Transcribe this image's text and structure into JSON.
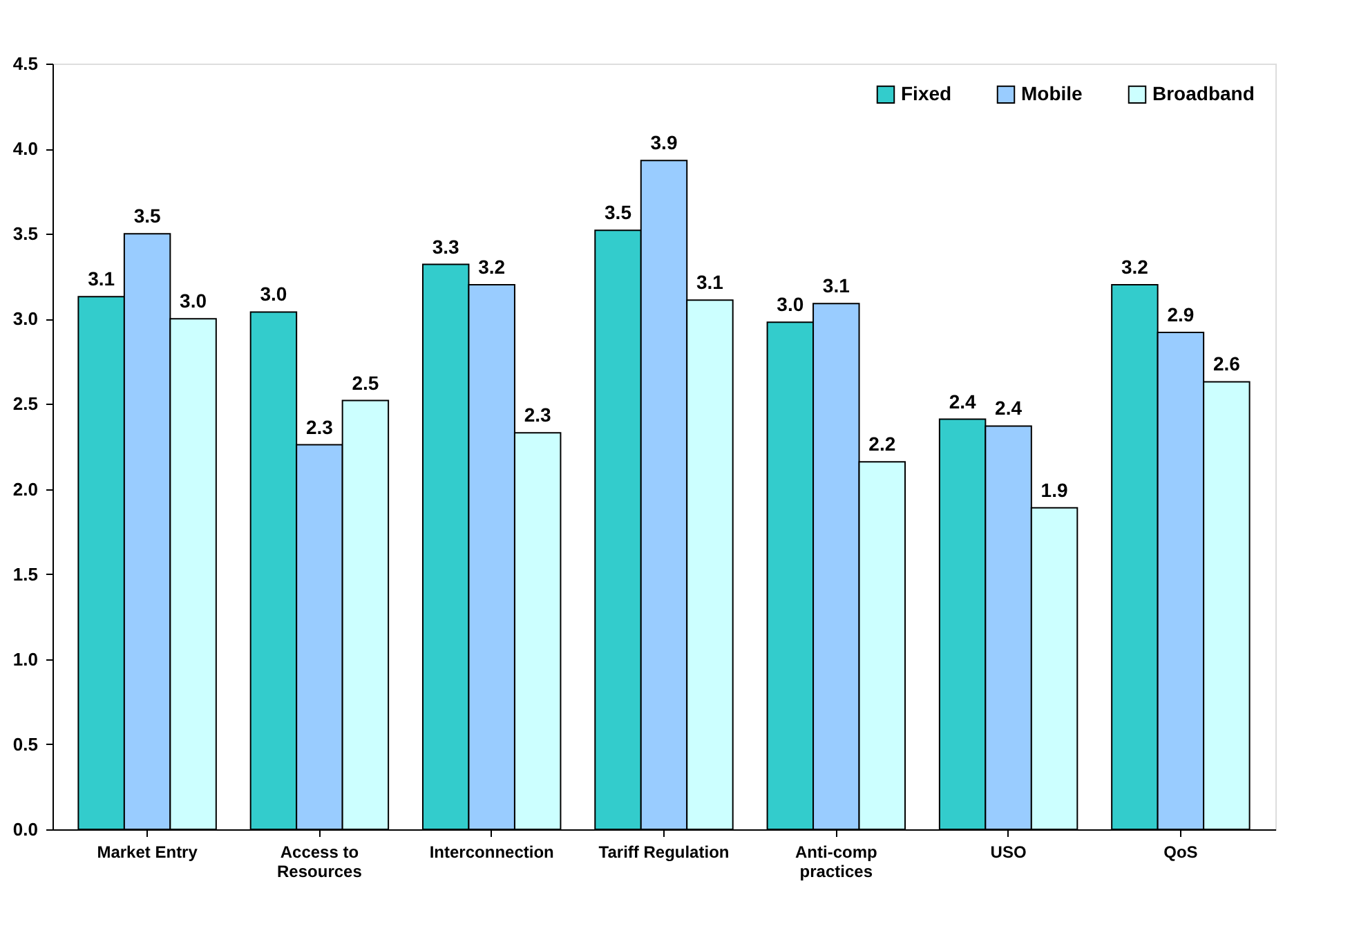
{
  "chart_data": {
    "type": "bar",
    "categories": [
      "Market Entry",
      "Access to Resources",
      "Interconnection",
      "Tariff Regulation",
      "Anti-comp practices",
      "USO",
      "QoS"
    ],
    "series": [
      {
        "name": "Fixed",
        "color": "#33cccc",
        "values": [
          3.13,
          3.04,
          3.32,
          3.52,
          2.98,
          2.41,
          3.2
        ],
        "value_labels": [
          "3.1",
          "3.0",
          "3.3",
          "3.5",
          "3.0",
          "2.4",
          "3.2"
        ]
      },
      {
        "name": "Mobile",
        "color": "#99ccff",
        "values": [
          3.5,
          2.26,
          3.2,
          3.93,
          3.09,
          2.37,
          2.92
        ],
        "value_labels": [
          "3.5",
          "2.3",
          "3.2",
          "3.9",
          "3.1",
          "2.4",
          "2.9"
        ]
      },
      {
        "name": "Broadband",
        "color": "#ccffff",
        "values": [
          3.0,
          2.52,
          2.33,
          3.11,
          2.16,
          1.89,
          2.63
        ],
        "value_labels": [
          "3.0",
          "2.5",
          "2.3",
          "3.1",
          "2.2",
          "1.9",
          "2.6"
        ]
      }
    ],
    "ylim": [
      0,
      4.5
    ],
    "yticks": [
      {
        "value": 0,
        "label": "0.0"
      },
      {
        "value": 0.5,
        "label": "0.5"
      },
      {
        "value": 1,
        "label": "1.0"
      },
      {
        "value": 1.5,
        "label": "1.5"
      },
      {
        "value": 2,
        "label": "2.0"
      },
      {
        "value": 2.5,
        "label": "2.5"
      },
      {
        "value": 3,
        "label": "3.0"
      },
      {
        "value": 3.5,
        "label": "3.5"
      },
      {
        "value": 4,
        "label": "4.0"
      },
      {
        "value": 4.5,
        "label": "4.5"
      }
    ],
    "grid": false,
    "legend": "top right"
  }
}
